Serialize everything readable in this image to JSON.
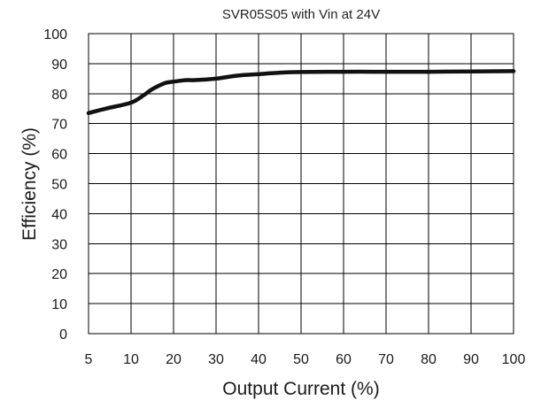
{
  "chart_data": {
    "type": "line",
    "title": "SVR05S05 with Vin at 24V",
    "xlabel": "Output Current (%)",
    "ylabel": "Efficiency (%)",
    "x_ticks": [
      5,
      10,
      20,
      30,
      40,
      50,
      60,
      70,
      80,
      90,
      100
    ],
    "y_ticks": [
      0,
      10,
      20,
      30,
      40,
      50,
      60,
      70,
      80,
      90,
      100
    ],
    "ylim": [
      0,
      100
    ],
    "xlim": [
      5,
      100
    ],
    "grid": true,
    "series": [
      {
        "color": "#111111",
        "x": [
          5,
          7,
          10,
          13,
          15,
          18,
          20,
          23,
          25,
          30,
          35,
          40,
          45,
          50,
          60,
          70,
          80,
          90,
          100
        ],
        "y": [
          73.5,
          75,
          77,
          79.5,
          81.5,
          83.5,
          84,
          84.5,
          84.5,
          85,
          86,
          86.5,
          87,
          87.2,
          87.3,
          87.3,
          87.3,
          87.4,
          87.5
        ]
      }
    ]
  }
}
